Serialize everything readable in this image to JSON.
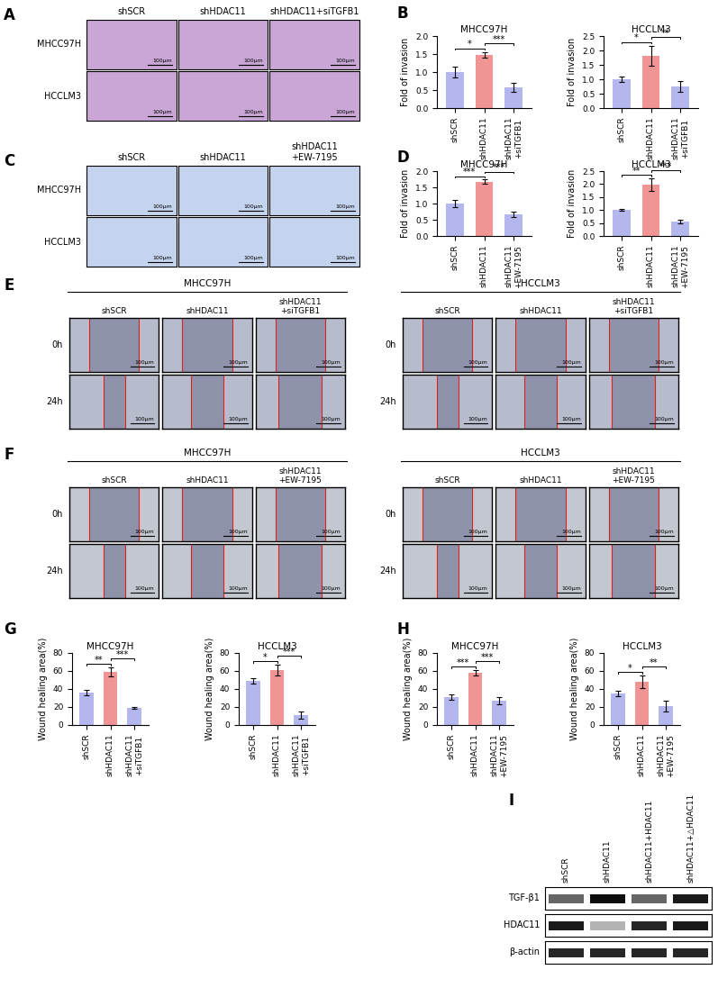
{
  "panels": {
    "A": {
      "type": "image_grid",
      "rows": [
        "MHCC97H",
        "HCCLM3"
      ],
      "columns": [
        "shSCR",
        "shHDAC11",
        "shHDAC11+siTGFB1"
      ],
      "scale_bar": "100μm",
      "color": "#c9a6d6"
    },
    "C": {
      "type": "image_grid",
      "rows": [
        "MHCC97H",
        "HCCLM3"
      ],
      "columns": [
        "shSCR",
        "shHDAC11",
        "shHDAC11\n+EW-7195"
      ],
      "scale_bar": "100μm",
      "color": "#c4d4ee"
    },
    "E": {
      "type": "wound_grid",
      "groups": [
        "MHCC97H",
        "HCCLM3"
      ],
      "rows": [
        "0h",
        "24h"
      ],
      "columns": [
        "shSCR",
        "shHDAC11",
        "shHDAC11\n+siTGFB1"
      ],
      "scale_bar": "100μm",
      "color": "#b7bccd"
    },
    "F": {
      "type": "wound_grid",
      "groups": [
        "MHCC97H",
        "HCCLM3"
      ],
      "rows": [
        "0h",
        "24h"
      ],
      "columns": [
        "shSCR",
        "shHDAC11",
        "shHDAC11\n+EW-7195"
      ],
      "scale_bar": "100μm",
      "color": "#c3c7cf"
    },
    "I": {
      "type": "western_blot",
      "lanes": [
        "shSCR",
        "shHDAC11",
        "shHDAC11+HDAC11",
        "shHDAC11+△HDAC11"
      ],
      "bands": [
        {
          "name": "TGF-β1",
          "intensity": [
            0.6,
            0.95,
            0.6,
            0.9
          ]
        },
        {
          "name": "HDAC11",
          "intensity": [
            0.9,
            0.3,
            0.85,
            0.9
          ]
        },
        {
          "name": "β-actin",
          "intensity": [
            0.85,
            0.85,
            0.85,
            0.85
          ]
        }
      ]
    }
  },
  "chart_data": [
    {
      "panel": "B",
      "type": "bar",
      "title": "MHCC97H",
      "y_label": "Fold of invasion",
      "categories": [
        "shSCR",
        "shHDAC11",
        "shHDAC11\n+siTGFB1"
      ],
      "values": [
        1.0,
        1.48,
        0.57
      ],
      "errors": [
        0.15,
        0.08,
        0.12
      ],
      "colors": [
        "#b4b6ee",
        "#f09494",
        "#b4b6ee"
      ],
      "ylim": [
        0,
        2.0
      ],
      "yticks": [
        {
          "value": 0,
          "label": "0.0"
        },
        0.5,
        {
          "value": 1,
          "label": "1.0"
        },
        1.5,
        {
          "value": 2,
          "label": "2.0"
        }
      ],
      "grid": false,
      "significance": [
        {
          "from": "shSCR",
          "to": "shHDAC11",
          "label": "*"
        },
        {
          "from": "shHDAC11",
          "to": "shHDAC11\n+siTGFB1",
          "label": "***"
        }
      ]
    },
    {
      "panel": "B",
      "type": "bar",
      "title": "HCCLM3",
      "y_label": "Fold of invasion",
      "categories": [
        "shSCR",
        "shHDAC11",
        "shHDAC11\n+siTGFB1"
      ],
      "values": [
        1.0,
        1.82,
        0.75
      ],
      "errors": [
        0.1,
        0.35,
        0.2
      ],
      "colors": [
        "#b4b6ee",
        "#f09494",
        "#b4b6ee"
      ],
      "ylim": [
        0,
        2.5
      ],
      "yticks": [
        {
          "value": 0,
          "label": "0.0"
        },
        0.5,
        {
          "value": 1,
          "label": "1.0"
        },
        1.5,
        {
          "value": 2,
          "label": "2.0"
        },
        2.5
      ],
      "grid": false,
      "significance": [
        {
          "from": "shSCR",
          "to": "shHDAC11",
          "label": "*"
        },
        {
          "from": "shHDAC11",
          "to": "shHDAC11\n+siTGFB1",
          "label": "**"
        }
      ]
    },
    {
      "panel": "D",
      "type": "bar",
      "title": "MHCC97H",
      "y_label": "Fold of invasion",
      "categories": [
        "shSCR",
        "shHDAC11",
        "shHDAC11\n+EW-7195"
      ],
      "values": [
        1.0,
        1.68,
        0.66
      ],
      "errors": [
        0.1,
        0.06,
        0.08
      ],
      "colors": [
        "#b4b6ee",
        "#f09494",
        "#b4b6ee"
      ],
      "ylim": [
        0,
        2.0
      ],
      "yticks": [
        {
          "value": 0,
          "label": "0.0"
        },
        0.5,
        {
          "value": 1,
          "label": "1.0"
        },
        1.5,
        {
          "value": 2,
          "label": "2.0"
        }
      ],
      "grid": false,
      "significance": [
        {
          "from": "shSCR",
          "to": "shHDAC11",
          "label": "***"
        },
        {
          "from": "shHDAC11",
          "to": "shHDAC11\n+EW-7195",
          "label": "***"
        }
      ]
    },
    {
      "panel": "D",
      "type": "bar",
      "title": "HCCLM3",
      "y_label": "Fold of invasion",
      "categories": [
        "shSCR",
        "shHDAC11",
        "shHDAC11\n+EW-7195"
      ],
      "values": [
        1.0,
        1.97,
        0.55
      ],
      "errors": [
        0.04,
        0.25,
        0.06
      ],
      "colors": [
        "#b4b6ee",
        "#f09494",
        "#b4b6ee"
      ],
      "ylim": [
        0,
        2.5
      ],
      "yticks": [
        {
          "value": 0,
          "label": "0.0"
        },
        0.5,
        {
          "value": 1,
          "label": "1.0"
        },
        1.5,
        {
          "value": 2,
          "label": "2.0"
        },
        2.5
      ],
      "grid": false,
      "significance": [
        {
          "from": "shSCR",
          "to": "shHDAC11",
          "label": "**"
        },
        {
          "from": "shHDAC11",
          "to": "shHDAC11\n+EW-7195",
          "label": "***"
        }
      ]
    },
    {
      "panel": "G",
      "type": "bar",
      "title": "MHCC97H",
      "y_label": "Wound healing area(%)",
      "categories": [
        "shSCR",
        "shHDAC11",
        "shHDAC11\n+siTGFB1"
      ],
      "values": [
        36,
        59,
        19
      ],
      "errors": [
        3,
        5,
        1
      ],
      "colors": [
        "#b4b6ee",
        "#f09494",
        "#b4b6ee"
      ],
      "ylim": [
        0,
        80
      ],
      "yticks": [
        0,
        20,
        40,
        60,
        80
      ],
      "grid": false,
      "significance": [
        {
          "from": "shSCR",
          "to": "shHDAC11",
          "label": "**"
        },
        {
          "from": "shHDAC11",
          "to": "shHDAC11\n+siTGFB1",
          "label": "***"
        }
      ]
    },
    {
      "panel": "G",
      "type": "bar",
      "title": "HCCLM3",
      "y_label": "Wound healing area(%)",
      "categories": [
        "shSCR",
        "shHDAC11",
        "shHDAC11\n+siTGFB1"
      ],
      "values": [
        49,
        61,
        11
      ],
      "errors": [
        3,
        6,
        4
      ],
      "colors": [
        "#b4b6ee",
        "#f09494",
        "#b4b6ee"
      ],
      "ylim": [
        0,
        80
      ],
      "yticks": [
        0,
        20,
        40,
        60,
        80
      ],
      "grid": false,
      "significance": [
        {
          "from": "shSCR",
          "to": "shHDAC11",
          "label": "*"
        },
        {
          "from": "shHDAC11",
          "to": "shHDAC11\n+siTGFB1",
          "label": "***"
        }
      ]
    },
    {
      "panel": "H",
      "type": "bar",
      "title": "MHCC97H",
      "y_label": "Wound healing area(%)",
      "categories": [
        "shSCR",
        "shHDAC11",
        "shHDAC11\n+EW-7195"
      ],
      "values": [
        31,
        58,
        27
      ],
      "errors": [
        3,
        3,
        4
      ],
      "colors": [
        "#b4b6ee",
        "#f09494",
        "#b4b6ee"
      ],
      "ylim": [
        0,
        80
      ],
      "yticks": [
        0,
        20,
        40,
        60,
        80
      ],
      "grid": false,
      "significance": [
        {
          "from": "shSCR",
          "to": "shHDAC11",
          "label": "***"
        },
        {
          "from": "shHDAC11",
          "to": "shHDAC11\n+EW-7195",
          "label": "***"
        }
      ]
    },
    {
      "panel": "H",
      "type": "bar",
      "title": "HCCLM3",
      "y_label": "Wound healing area(%)",
      "categories": [
        "shSCR",
        "shHDAC11",
        "shHDAC11\n+EW-7195"
      ],
      "values": [
        35,
        48,
        21
      ],
      "errors": [
        3,
        7,
        6
      ],
      "colors": [
        "#b4b6ee",
        "#f09494",
        "#b4b6ee"
      ],
      "ylim": [
        0,
        80
      ],
      "yticks": [
        0,
        20,
        40,
        60,
        80
      ],
      "grid": false,
      "significance": [
        {
          "from": "shSCR",
          "to": "shHDAC11",
          "label": "*"
        },
        {
          "from": "shHDAC11",
          "to": "shHDAC11\n+EW-7195",
          "label": "**"
        }
      ]
    }
  ]
}
